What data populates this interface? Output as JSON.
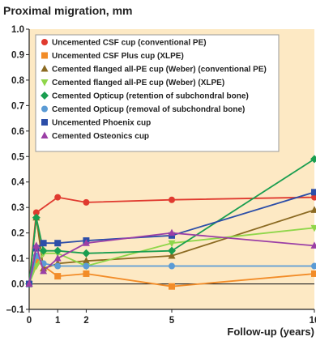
{
  "chart_data": {
    "type": "line",
    "ylabel": "Proximal migration, mm",
    "xlabel": "Follow-up (years)",
    "xlim": [
      0,
      10
    ],
    "ylim": [
      -0.1,
      1.0
    ],
    "x_ticks": [
      0,
      1,
      2,
      5,
      10
    ],
    "y_ticks": [
      -0.1,
      0.0,
      0.1,
      0.2,
      0.3,
      0.4,
      0.5,
      0.6,
      0.7,
      0.8,
      0.9,
      1.0
    ],
    "y_tick_labels": [
      "–0.1",
      "0.0",
      "0.1",
      "0.2",
      "0.3",
      "0.4",
      "0.5",
      "0.6",
      "0.7",
      "0.8",
      "0.9",
      "1.0"
    ],
    "plot_background": "#fde9c4",
    "grid": false,
    "legend_position": "top-left",
    "series": [
      {
        "name": "Uncemented CSF cup (conventional PE)",
        "color": "#e03a2f",
        "marker": "circle",
        "x": [
          0,
          0.25,
          1,
          2,
          5,
          10
        ],
        "y": [
          0,
          0.28,
          0.34,
          0.32,
          0.33,
          0.34
        ]
      },
      {
        "name": "Uncemented CSF Plus cup (XLPE)",
        "color": "#f28c28",
        "marker": "square",
        "x": [
          0,
          0.25,
          1,
          2,
          5,
          10
        ],
        "y": [
          0,
          0.09,
          0.03,
          0.04,
          -0.01,
          0.04
        ]
      },
      {
        "name": "Cemented flanged all-PE cup (Weber) (conventional PE)",
        "color": "#8b6a22",
        "marker": "triangle-up",
        "x": [
          0,
          0.25,
          0.5,
          1,
          2,
          5,
          10
        ],
        "y": [
          0,
          0.26,
          0.06,
          0.08,
          0.09,
          0.11,
          0.29
        ]
      },
      {
        "name": "Cemented flanged all-PE cup (Weber) (XLPE)",
        "color": "#8fd64a",
        "marker": "triangle-down",
        "x": [
          0,
          0.25,
          0.5,
          1,
          2,
          5,
          10
        ],
        "y": [
          0,
          0.07,
          0.12,
          0.12,
          0.07,
          0.16,
          0.22
        ]
      },
      {
        "name": "Cemented Opticup (retention of subchondral  bone)",
        "color": "#1a9e50",
        "marker": "diamond",
        "x": [
          0,
          0.25,
          0.5,
          1,
          2,
          5,
          10
        ],
        "y": [
          0,
          0.26,
          0.13,
          0.13,
          0.12,
          0.13,
          0.49
        ]
      },
      {
        "name": "Cemented Opticup (removal of subchondral  bone)",
        "color": "#5b9bd5",
        "marker": "circle",
        "x": [
          0,
          0.25,
          0.5,
          1,
          2,
          5,
          10
        ],
        "y": [
          0,
          0.11,
          0.08,
          0.07,
          0.07,
          0.07,
          0.07
        ]
      },
      {
        "name": "Uncemented Phoenix cup",
        "color": "#2c4ea8",
        "marker": "square",
        "x": [
          0,
          0.25,
          0.5,
          1,
          2,
          5,
          10
        ],
        "y": [
          0,
          0.14,
          0.16,
          0.16,
          0.17,
          0.19,
          0.36
        ]
      },
      {
        "name": "Cemented Osteonics cup",
        "color": "#9b3fa6",
        "marker": "triangle-up",
        "x": [
          0,
          0.25,
          0.5,
          1,
          2,
          5,
          10
        ],
        "y": [
          0,
          0.15,
          0.05,
          0.1,
          0.16,
          0.2,
          0.15
        ]
      }
    ]
  }
}
